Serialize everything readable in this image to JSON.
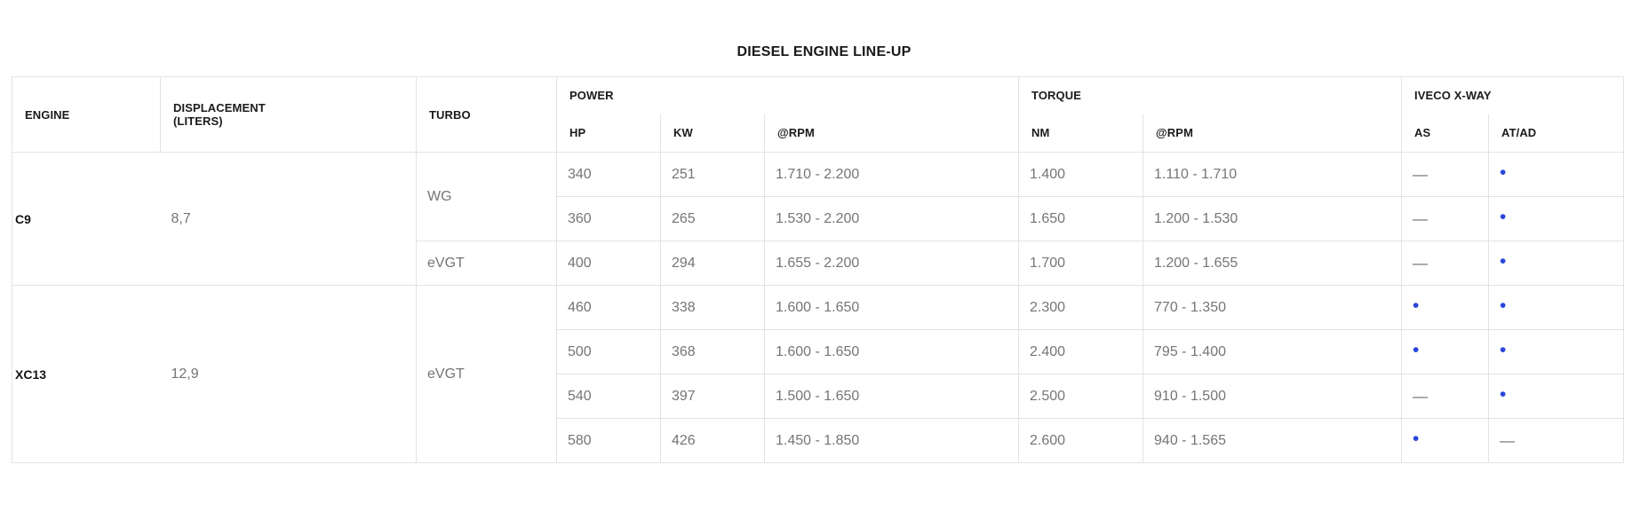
{
  "page_title": "DIESEL ENGINE LINE-UP",
  "colors": {
    "accent_blue_dot": "#2946db",
    "body_text_gray": "#757575",
    "header_text": "#1b1b1b",
    "grid_border": "#e3e3e3",
    "background": "#ffffff"
  },
  "glyphs": {
    "dot": "•",
    "dash": "—"
  },
  "table": {
    "header": {
      "engine": "ENGINE",
      "displacement": "DISPLACEMENT",
      "displacement_unit": "(LITERS)",
      "turbo": "TURBO",
      "power_group": "POWER",
      "torque_group": "TORQUE",
      "iveco_group": "IVECO X-WAY",
      "hp": "HP",
      "kw": "KW",
      "power_rpm": "@RPM",
      "nm": "NM",
      "torque_rpm": "@RPM",
      "as": "AS",
      "atad": "AT/AD"
    },
    "rows": [
      {
        "engine": {
          "text": "C9",
          "rowspan": 3
        },
        "displacement": {
          "text": "8,7",
          "rowspan": 3
        },
        "turbo": {
          "text": "WG",
          "rowspan": 2
        },
        "hp": "340",
        "kw": "251",
        "power_rpm": "1.710 - 2.200",
        "nm": "1.400",
        "torque_rpm": "1.110 - 1.710",
        "as": "dash",
        "atad": "dot"
      },
      {
        "hp": "360",
        "kw": "265",
        "power_rpm": "1.530 - 2.200",
        "nm": "1.650",
        "torque_rpm": "1.200 - 1.530",
        "as": "dash",
        "atad": "dot"
      },
      {
        "turbo": {
          "text": "eVGT",
          "rowspan": 1
        },
        "hp": "400",
        "kw": "294",
        "power_rpm": "1.655 - 2.200",
        "nm": "1.700",
        "torque_rpm": "1.200 - 1.655",
        "as": "dash",
        "atad": "dot"
      },
      {
        "engine": {
          "text": "XC13",
          "rowspan": 4
        },
        "displacement": {
          "text": "12,9",
          "rowspan": 4
        },
        "turbo": {
          "text": "eVGT",
          "rowspan": 4
        },
        "hp": "460",
        "kw": "338",
        "power_rpm": "1.600 - 1.650",
        "nm": "2.300",
        "torque_rpm": "770 - 1.350",
        "as": "dot",
        "atad": "dot"
      },
      {
        "hp": "500",
        "kw": "368",
        "power_rpm": "1.600 - 1.650",
        "nm": "2.400",
        "torque_rpm": "795 - 1.400",
        "as": "dot",
        "atad": "dot"
      },
      {
        "hp": "540",
        "kw": "397",
        "power_rpm": "1.500 - 1.650",
        "nm": "2.500",
        "torque_rpm": "910 - 1.500",
        "as": "dash",
        "atad": "dot"
      },
      {
        "hp": "580",
        "kw": "426",
        "power_rpm": "1.450 - 1.850",
        "nm": "2.600",
        "torque_rpm": "940 - 1.565",
        "as": "dot",
        "atad": "dash"
      }
    ]
  }
}
